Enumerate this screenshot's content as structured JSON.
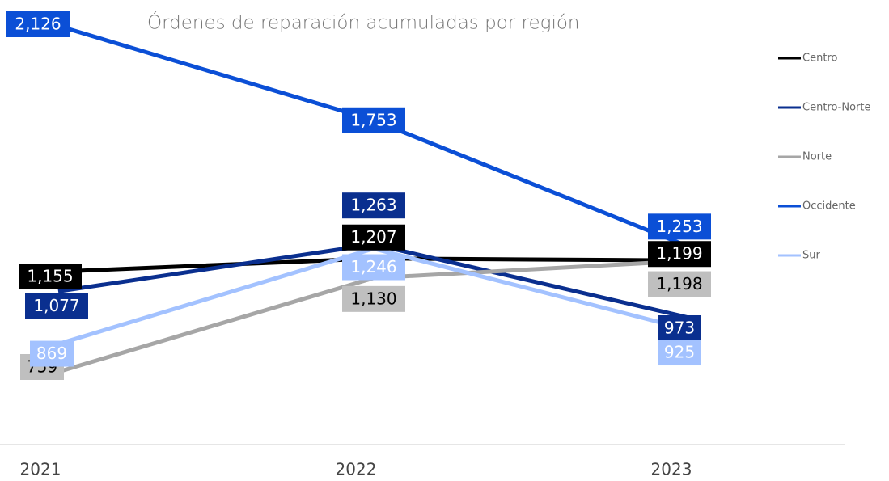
{
  "chart_data": {
    "type": "line",
    "title": "Órdenes de reparación acumuladas por región",
    "categories": [
      "2021",
      "2022",
      "2023"
    ],
    "series": [
      {
        "name": "Centro",
        "color": "#000000",
        "label_fill": "#000000",
        "label_color": "#ffffff",
        "values": [
          1155,
          1207,
          1199
        ],
        "value_labels": [
          "1,155",
          "1,207",
          "1,199"
        ]
      },
      {
        "name": "Centro-Norte",
        "color": "#0a2f8f",
        "label_fill": "#0a2f8f",
        "label_color": "#ffffff",
        "values": [
          1077,
          1263,
          973
        ],
        "value_labels": [
          "1,077",
          "1,263",
          "973"
        ]
      },
      {
        "name": "Norte",
        "color": "#a6a6a6",
        "label_fill": "#bfbfbf",
        "label_color": "#000000",
        "values": [
          759,
          1130,
          1198
        ],
        "value_labels": [
          "759",
          "1,130",
          "1,198"
        ]
      },
      {
        "name": "Occidente",
        "color": "#0b4fd6",
        "label_fill": "#0b4fd6",
        "label_color": "#ffffff",
        "values": [
          2126,
          1753,
          1253
        ],
        "value_labels": [
          "2,126",
          "1,753",
          "1,253"
        ]
      },
      {
        "name": "Sur",
        "color": "#a3c2ff",
        "label_fill": "#a3c2ff",
        "label_color": "#ffffff",
        "values": [
          869,
          1246,
          925
        ],
        "value_labels": [
          "869",
          "1,246",
          "925"
        ]
      }
    ],
    "legend": "right"
  }
}
